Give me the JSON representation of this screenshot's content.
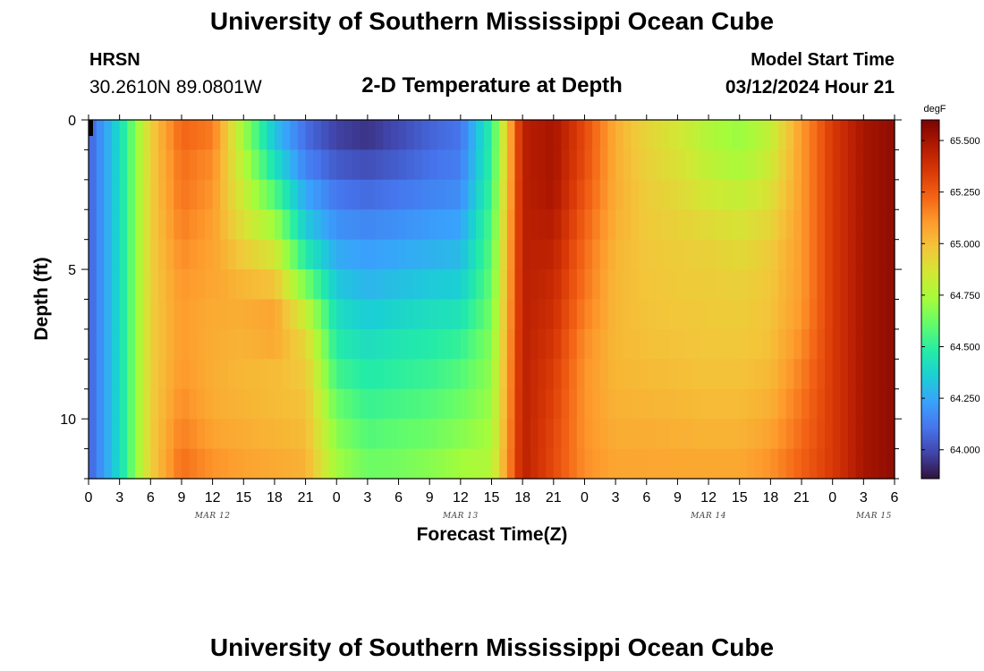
{
  "header": {
    "title": "University of Southern Mississippi Ocean Cube",
    "station": "HRSN",
    "coords": "30.2610N  89.0801W",
    "plot_title": "2-D Temperature at Depth",
    "model_label": "Model Start Time",
    "model_time": "03/12/2024 Hour 21"
  },
  "footer": {
    "title": "University of Southern Mississippi Ocean Cube"
  },
  "chart_data": {
    "type": "heatmap",
    "title": "2-D Temperature at Depth",
    "xlabel": "Forecast Time(Z)",
    "ylabel": "Depth (ft)",
    "xlim": [
      0,
      78
    ],
    "ylim": [
      0,
      12
    ],
    "x_ticks": [
      "0",
      "3",
      "6",
      "9",
      "12",
      "15",
      "18",
      "21",
      "0",
      "3",
      "6",
      "9",
      "12",
      "15",
      "18",
      "21",
      "0",
      "3",
      "6",
      "9",
      "12",
      "15",
      "18",
      "21",
      "0",
      "3",
      "6"
    ],
    "y_ticks": [
      "0",
      "5",
      "10"
    ],
    "date_labels": [
      {
        "label": "MAR 12",
        "hour": 12
      },
      {
        "label": "MAR 13",
        "hour": 36
      },
      {
        "label": "MAR 14",
        "hour": 60
      },
      {
        "label": "MAR 15",
        "hour": 76
      }
    ],
    "colorbar": {
      "unit": "degF",
      "min": 63.86,
      "max": 65.6,
      "ticks": [
        "64.000",
        "64.250",
        "64.500",
        "64.750",
        "65.000",
        "65.250",
        "65.500"
      ],
      "colors": [
        "#30123b",
        "#4145ab",
        "#4675ed",
        "#39a2fc",
        "#1bcfd4",
        "#24eca6",
        "#61fc6c",
        "#a4fc3b",
        "#d1e834",
        "#f3c63a",
        "#fe9b2d",
        "#f36315",
        "#d93806",
        "#b11901",
        "#7a0403"
      ]
    },
    "depth_levels_ft": [
      0,
      1,
      2,
      3,
      4,
      5,
      6,
      7,
      8,
      9,
      10,
      11,
      12
    ],
    "time_hours": [
      0,
      3,
      6,
      9,
      12,
      15,
      18,
      21,
      24,
      27,
      30,
      33,
      36,
      39,
      42,
      45,
      48,
      51,
      54,
      57,
      60,
      63,
      66,
      69,
      72,
      75,
      78
    ],
    "values_degF": [
      [
        64.05,
        64.4,
        64.95,
        65.25,
        65.2,
        64.7,
        64.3,
        64.08,
        63.95,
        63.92,
        63.98,
        64.05,
        64.1,
        64.5,
        65.45,
        65.5,
        65.3,
        65.05,
        64.92,
        64.85,
        64.75,
        64.7,
        64.8,
        65.1,
        65.35,
        65.5,
        65.55
      ],
      [
        64.05,
        64.4,
        64.95,
        65.2,
        65.15,
        64.75,
        64.35,
        64.1,
        64.0,
        63.97,
        64.02,
        64.08,
        64.12,
        64.5,
        65.45,
        65.5,
        65.3,
        65.05,
        64.93,
        64.87,
        64.78,
        64.72,
        64.82,
        65.1,
        65.35,
        65.5,
        65.55
      ],
      [
        64.05,
        64.4,
        64.95,
        65.2,
        65.12,
        64.8,
        64.5,
        64.2,
        64.08,
        64.05,
        64.08,
        64.12,
        64.15,
        64.52,
        65.45,
        65.5,
        65.28,
        65.05,
        64.95,
        64.9,
        64.82,
        64.78,
        64.86,
        65.1,
        65.35,
        65.5,
        65.55
      ],
      [
        64.05,
        64.4,
        64.95,
        65.18,
        65.1,
        64.85,
        64.65,
        64.3,
        64.15,
        64.12,
        64.15,
        64.18,
        64.2,
        64.55,
        65.45,
        65.48,
        65.25,
        65.05,
        64.96,
        64.93,
        64.88,
        64.85,
        64.9,
        65.1,
        65.35,
        65.5,
        65.55
      ],
      [
        64.05,
        64.4,
        64.95,
        65.15,
        65.08,
        64.92,
        64.8,
        64.4,
        64.22,
        64.2,
        64.22,
        64.25,
        64.28,
        64.58,
        65.45,
        65.45,
        65.22,
        65.03,
        64.97,
        64.95,
        64.93,
        64.9,
        64.95,
        65.1,
        65.35,
        65.5,
        65.55
      ],
      [
        64.05,
        64.4,
        64.95,
        65.12,
        65.08,
        65.0,
        64.92,
        64.55,
        64.3,
        64.25,
        64.28,
        64.3,
        64.32,
        64.6,
        65.45,
        65.42,
        65.2,
        65.02,
        64.98,
        64.96,
        64.95,
        64.93,
        64.97,
        65.1,
        65.35,
        65.5,
        65.55
      ],
      [
        64.05,
        64.4,
        64.95,
        65.1,
        65.06,
        65.05,
        65.05,
        64.75,
        64.38,
        64.32,
        64.35,
        64.38,
        64.4,
        64.62,
        65.45,
        65.4,
        65.18,
        65.02,
        64.98,
        64.97,
        64.96,
        64.95,
        64.98,
        65.1,
        65.35,
        65.5,
        65.55
      ],
      [
        64.05,
        64.4,
        64.95,
        65.1,
        65.05,
        65.05,
        65.1,
        64.9,
        64.45,
        64.38,
        64.42,
        64.45,
        64.48,
        64.65,
        65.45,
        65.38,
        65.15,
        65.02,
        64.99,
        64.98,
        64.97,
        64.96,
        64.99,
        65.12,
        65.35,
        65.5,
        65.55
      ],
      [
        64.05,
        64.4,
        64.95,
        65.1,
        65.05,
        65.02,
        65.02,
        64.95,
        64.5,
        64.45,
        64.48,
        64.5,
        64.55,
        64.68,
        65.45,
        65.35,
        65.12,
        65.02,
        65.0,
        64.99,
        64.98,
        64.98,
        65.0,
        65.15,
        65.35,
        65.5,
        65.55
      ],
      [
        64.05,
        64.4,
        64.95,
        65.12,
        65.05,
        65.02,
        65.0,
        64.98,
        64.58,
        64.5,
        64.52,
        64.55,
        64.6,
        64.7,
        65.45,
        65.33,
        65.12,
        65.03,
        65.02,
        65.01,
        65.0,
        65.0,
        65.03,
        65.18,
        65.35,
        65.5,
        65.55
      ],
      [
        64.05,
        64.4,
        64.95,
        65.15,
        65.06,
        65.04,
        65.02,
        65.0,
        64.65,
        64.55,
        64.58,
        64.6,
        64.65,
        64.72,
        65.45,
        65.32,
        65.12,
        65.04,
        65.04,
        65.03,
        65.02,
        65.02,
        65.06,
        65.2,
        65.35,
        65.5,
        65.55
      ],
      [
        64.05,
        64.4,
        64.95,
        65.18,
        65.1,
        65.06,
        65.04,
        65.02,
        64.7,
        64.6,
        64.62,
        64.65,
        64.7,
        64.75,
        65.45,
        65.3,
        65.12,
        65.06,
        65.06,
        65.05,
        65.05,
        65.05,
        65.1,
        65.22,
        65.35,
        65.5,
        65.55
      ],
      [
        64.05,
        64.4,
        64.95,
        65.22,
        65.14,
        65.1,
        65.08,
        65.05,
        64.75,
        64.65,
        64.66,
        64.7,
        64.75,
        64.78,
        65.45,
        65.3,
        65.14,
        65.08,
        65.08,
        65.08,
        65.08,
        65.08,
        65.14,
        65.25,
        65.35,
        65.5,
        65.55
      ]
    ]
  }
}
